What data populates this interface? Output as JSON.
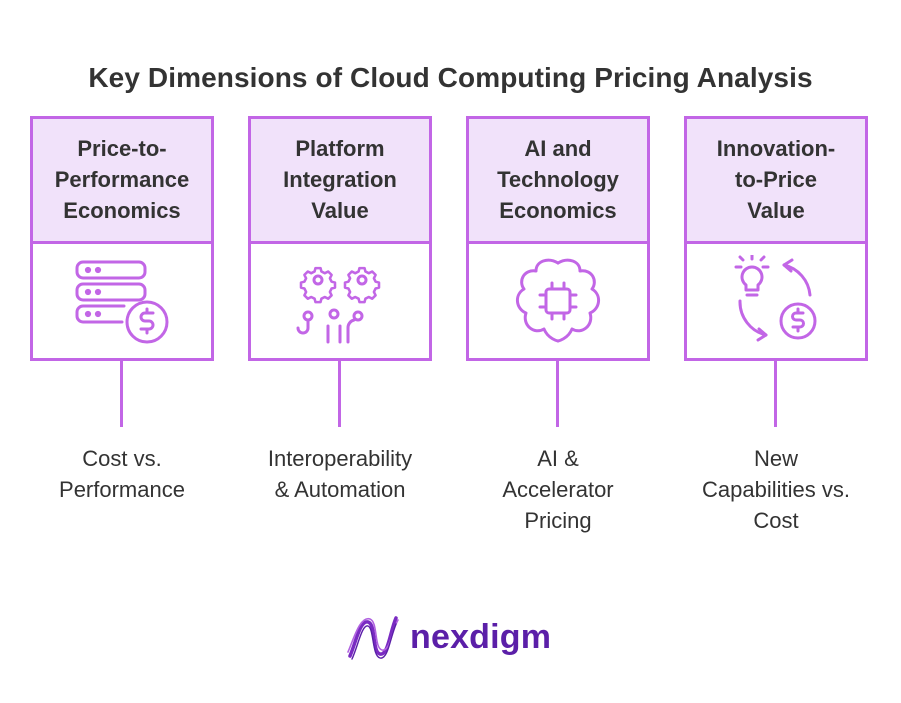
{
  "title": "Key Dimensions of Cloud Computing Pricing Analysis",
  "accent_color": "#c266e6",
  "header_fill": "#f1e2fa",
  "cards": [
    {
      "heading_lines": [
        "Price-to-",
        "Performance",
        "Economics"
      ],
      "icon": "server-dollar-icon",
      "caption_lines": [
        "Cost vs.",
        "Performance"
      ]
    },
    {
      "heading_lines": [
        "Platform",
        "Integration",
        "Value"
      ],
      "icon": "gears-connectors-icon",
      "caption_lines": [
        "Interoperability",
        "& Automation"
      ]
    },
    {
      "heading_lines": [
        "AI and",
        "Technology",
        "Economics"
      ],
      "icon": "brain-chip-icon",
      "caption_lines": [
        "AI &",
        "Accelerator",
        "Pricing"
      ]
    },
    {
      "heading_lines": [
        "Innovation-",
        "to-Price",
        "Value"
      ],
      "icon": "lightbulb-cycle-dollar-icon",
      "caption_lines": [
        "New",
        "Capabilities vs.",
        "Cost"
      ]
    }
  ],
  "logo": {
    "text": "nexdigm",
    "icon": "nexdigm-wave-logo"
  }
}
